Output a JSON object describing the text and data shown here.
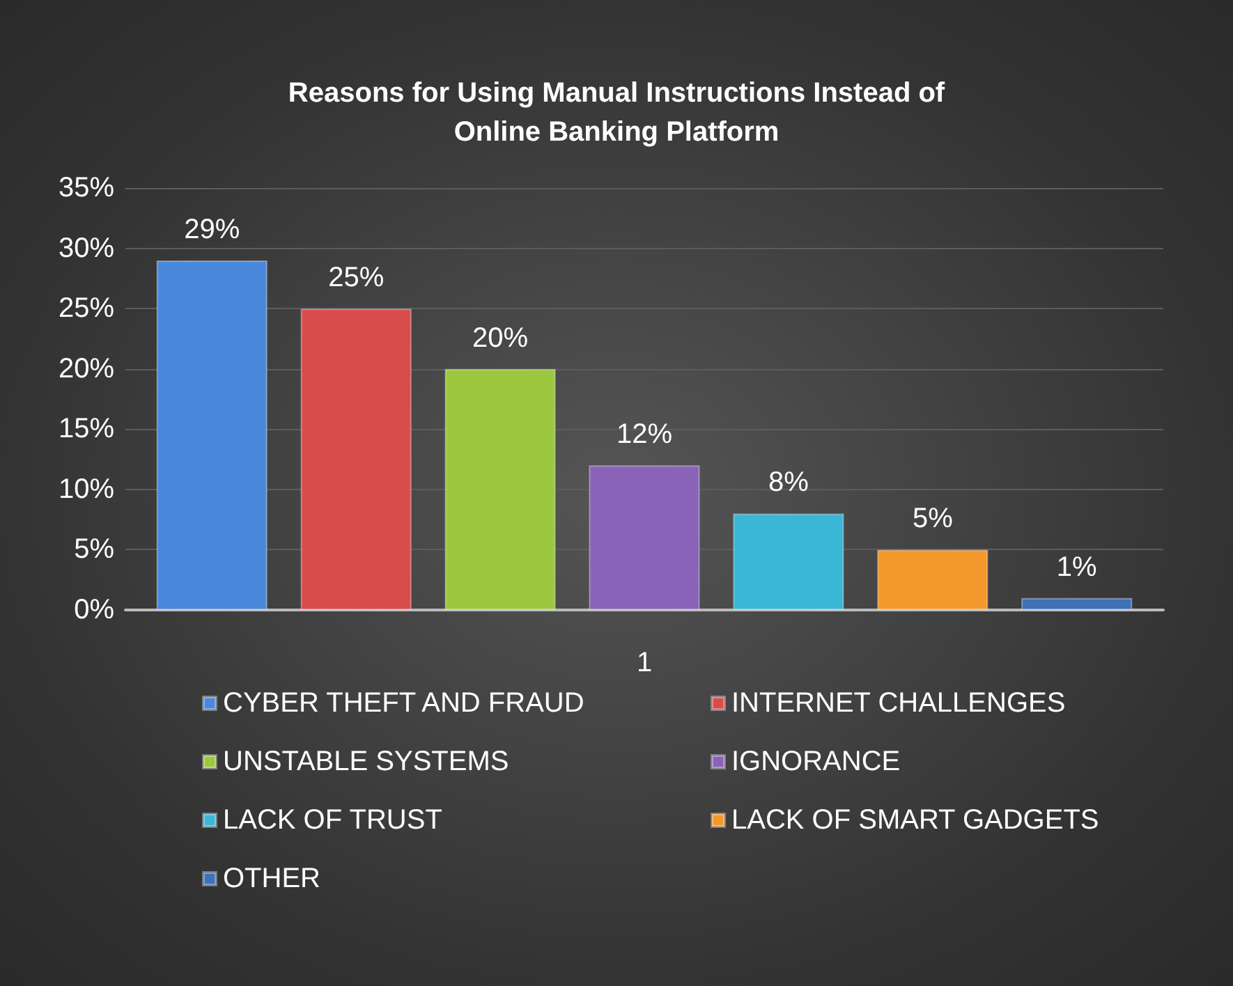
{
  "chart_data": {
    "type": "bar",
    "title": "Reasons for Using Manual Instructions Instead of\nOnline Banking Platform",
    "categories": [
      "1"
    ],
    "series": [
      {
        "name": "CYBER THEFT AND FRAUD",
        "color": "#4a88dc",
        "values": [
          29
        ],
        "value_labels": [
          "29%"
        ]
      },
      {
        "name": "INTERNET CHALLENGES",
        "color": "#d94c4c",
        "values": [
          25
        ],
        "value_labels": [
          "25%"
        ]
      },
      {
        "name": "UNSTABLE SYSTEMS",
        "color": "#9cc840",
        "values": [
          20
        ],
        "value_labels": [
          "20%"
        ]
      },
      {
        "name": "IGNORANCE",
        "color": "#8a62b8",
        "values": [
          12
        ],
        "value_labels": [
          "12%"
        ]
      },
      {
        "name": "LACK OF TRUST",
        "color": "#3cb6d6",
        "values": [
          8
        ],
        "value_labels": [
          "8%"
        ]
      },
      {
        "name": "LACK OF SMART GADGETS",
        "color": "#f5982c",
        "values": [
          5
        ],
        "value_labels": [
          "5%"
        ]
      },
      {
        "name": "OTHER",
        "color": "#3f70b8",
        "values": [
          1
        ],
        "value_labels": [
          "1%"
        ]
      }
    ],
    "ylim": [
      0,
      35
    ],
    "yticks": [
      {
        "value": 0,
        "label": "0%"
      },
      {
        "value": 5,
        "label": "5%"
      },
      {
        "value": 10,
        "label": "10%"
      },
      {
        "value": 15,
        "label": "15%"
      },
      {
        "value": 20,
        "label": "20%"
      },
      {
        "value": 25,
        "label": "25%"
      },
      {
        "value": 30,
        "label": "30%"
      },
      {
        "value": 35,
        "label": "35%"
      }
    ],
    "grid": "y",
    "legend": "bottom"
  }
}
